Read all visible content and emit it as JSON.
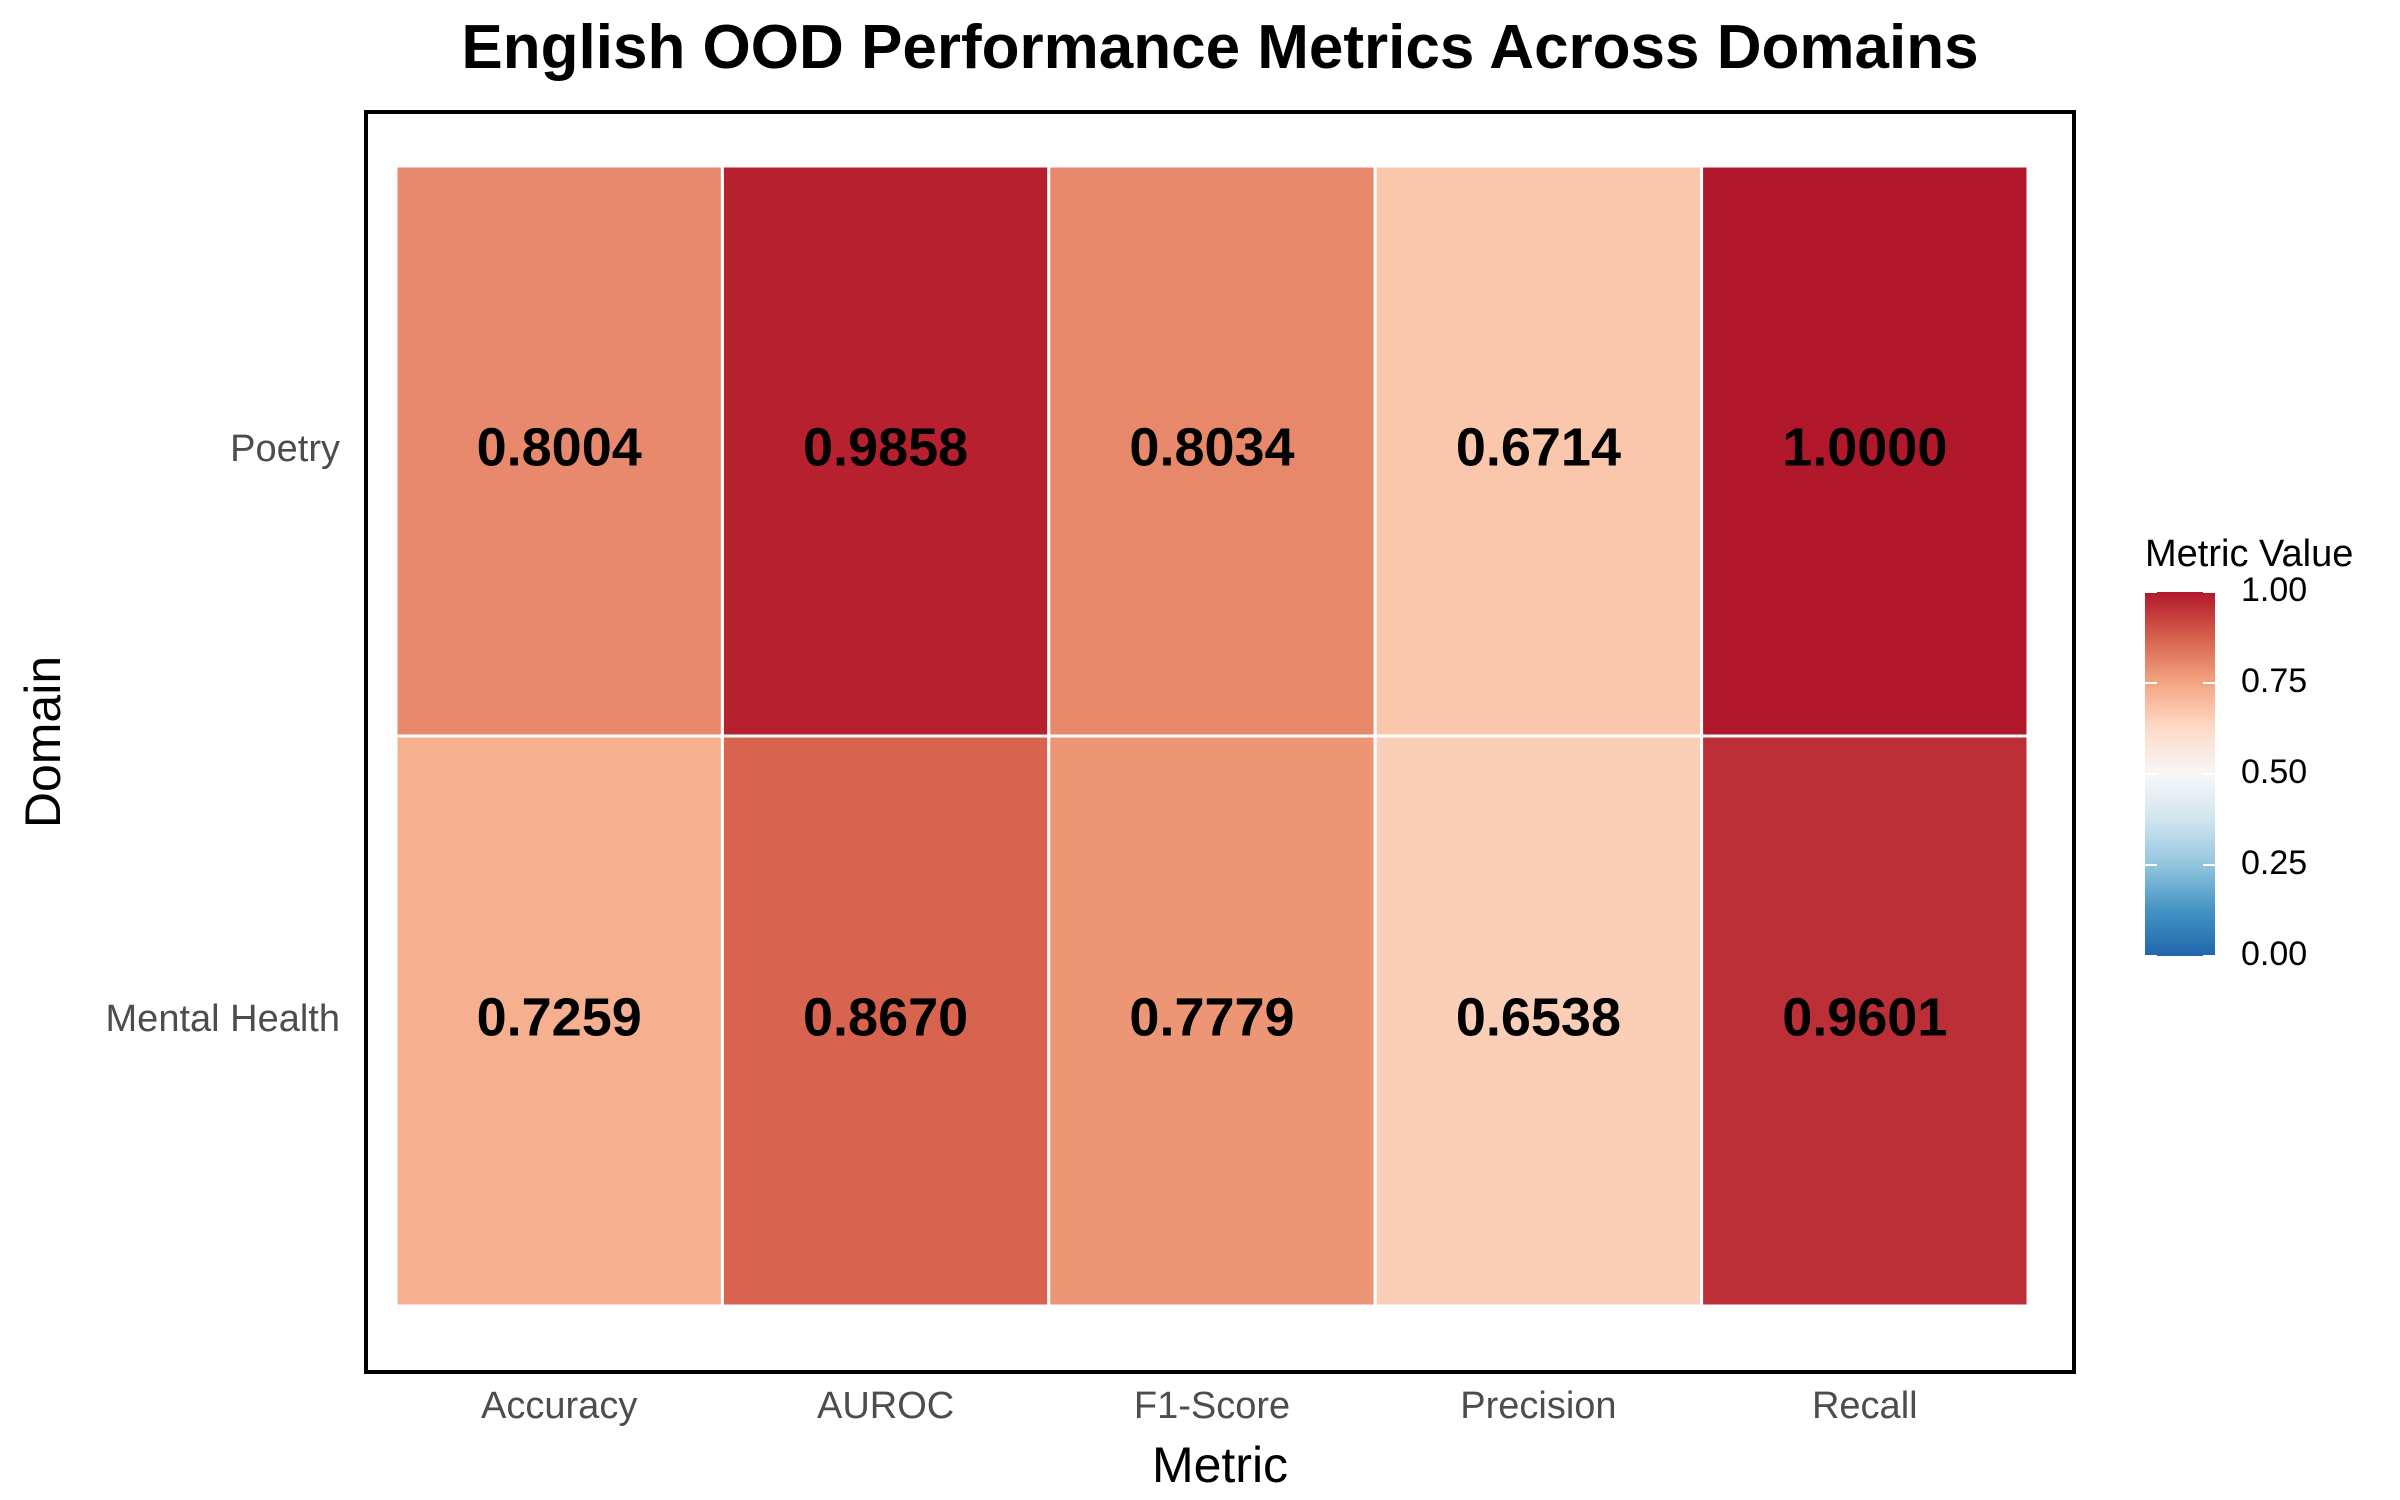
{
  "chart_data": {
    "type": "heatmap",
    "title": "English OOD Performance Metrics Across Domains",
    "xlabel": "Metric",
    "ylabel": "Domain",
    "x_categories": [
      "Accuracy",
      "AUROC",
      "F1-Score",
      "Precision",
      "Recall"
    ],
    "y_categories": [
      "Poetry",
      "Mental Health"
    ],
    "values": [
      [
        0.8004,
        0.9858,
        0.8034,
        0.6714,
        1.0
      ],
      [
        0.7259,
        0.867,
        0.7779,
        0.6538,
        0.9601
      ]
    ],
    "value_labels": [
      [
        "0.8004",
        "0.9858",
        "0.8034",
        "0.6714",
        "1.0000"
      ],
      [
        "0.7259",
        "0.8670",
        "0.7779",
        "0.6538",
        "0.9601"
      ]
    ],
    "legend": {
      "title": "Metric Value",
      "placement": "right",
      "ticks": [
        "0.00",
        "0.25",
        "0.50",
        "0.75",
        "1.00"
      ],
      "range": [
        0,
        1
      ]
    },
    "color_scale": {
      "low": "#2166ac",
      "mid": "#f7f7f7",
      "high": "#b2182b",
      "stops": [
        "#2166ac",
        "#4393c3",
        "#92c5de",
        "#d1e5f0",
        "#f7f7f7",
        "#fddbc7",
        "#f4a582",
        "#d6604d",
        "#b2182b"
      ]
    },
    "grid": false
  }
}
